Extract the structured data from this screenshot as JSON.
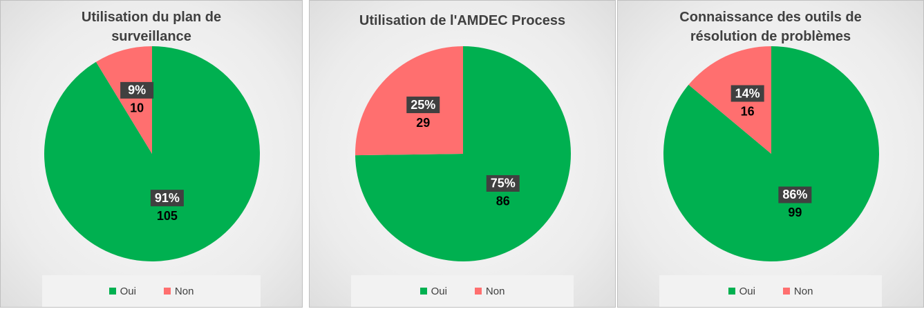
{
  "chart_data": [
    {
      "type": "pie",
      "title": "Utilisation du plan de surveillance",
      "categories": [
        "Oui",
        "Non"
      ],
      "values": [
        105,
        10
      ],
      "percent_labels": [
        "91%",
        "9%"
      ],
      "colors": [
        "#00b050",
        "#ff6f6f"
      ]
    },
    {
      "type": "pie",
      "title": "Utilisation de l'AMDEC Process",
      "categories": [
        "Oui",
        "Non"
      ],
      "values": [
        86,
        29
      ],
      "percent_labels": [
        "75%",
        "25%"
      ],
      "colors": [
        "#00b050",
        "#ff6f6f"
      ]
    },
    {
      "type": "pie",
      "title": "Connaissance des outils de résolution de problèmes",
      "categories": [
        "Oui",
        "Non"
      ],
      "values": [
        99,
        16
      ],
      "percent_labels": [
        "86%",
        "14%"
      ],
      "colors": [
        "#00b050",
        "#ff6f6f"
      ]
    }
  ]
}
